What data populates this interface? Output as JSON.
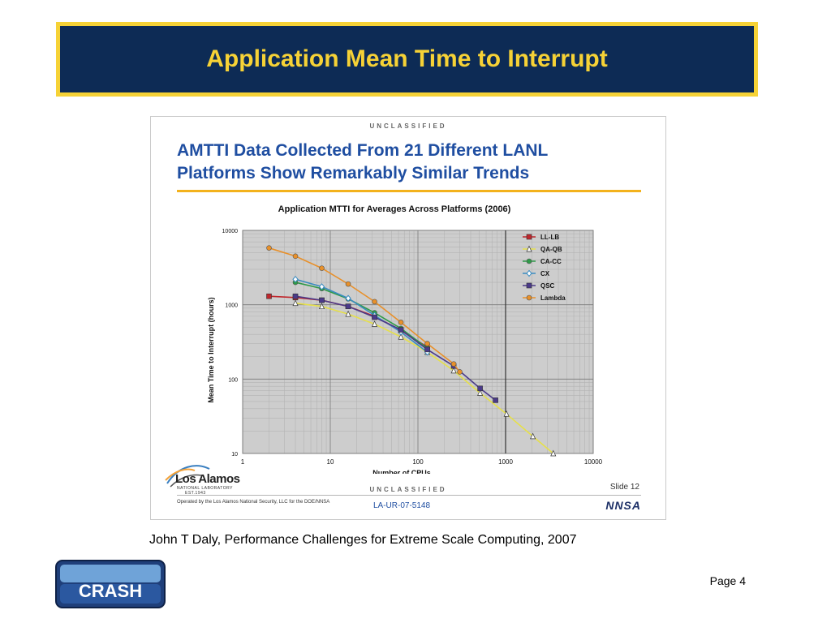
{
  "slide": {
    "title": "Application Mean Time to Interrupt",
    "caption": "John T Daly, Performance Challenges for Extreme Scale Computing, 2007",
    "page_label": "Page 4",
    "logo_text": "CRASH"
  },
  "inner": {
    "classification_top": "UNCLASSIFIED",
    "classification_bottom": "UNCLASSIFIED",
    "headline_line1": "AMTTI Data Collected From 21 Different LANL",
    "headline_line2": "Platforms Show Remarkably Similar Trends",
    "slide_number": "Slide 12",
    "document_id": "LA-UR-07-5148",
    "operated_by": "Operated by the Los Alamos National Security, LLC for the DOE/NNSA",
    "lab_name": "Los Alamos",
    "lab_sub": "NATIONAL LABORATORY",
    "lab_est": "EST.1943",
    "agency_logo": "NNSA"
  },
  "colors": {
    "title_bg": "#0d2b55",
    "title_fg": "#f6d236",
    "headline": "#1f4ea1",
    "headline_rule": "#f3b21d",
    "plot_bg": "#cdcdcd"
  },
  "chart_data": {
    "type": "line",
    "title": "Application MTTI for Averages Across Platforms (2006)",
    "xlabel": "Number of CPUs",
    "ylabel": "Mean Time to Interrupt (hours)",
    "xscale": "log",
    "yscale": "log",
    "xlim": [
      1,
      10000
    ],
    "ylim": [
      10,
      10000
    ],
    "x_ticks": [
      "1",
      "10",
      "100",
      "1000",
      "10000"
    ],
    "y_ticks": [
      "10",
      "100",
      "1000",
      "10000"
    ],
    "grid": true,
    "legend_position": "top-right",
    "series": [
      {
        "name": "LL-LB",
        "color": "#c0272d",
        "marker": "square",
        "x": [
          2,
          4,
          8,
          16,
          32,
          64,
          128
        ],
        "y": [
          1300,
          1250,
          1150,
          950,
          700,
          450,
          270
        ]
      },
      {
        "name": "QA-QB",
        "color": "#e6e04a",
        "marker": "triangle",
        "x": [
          4,
          8,
          16,
          32,
          64,
          128,
          256,
          512,
          1024,
          2048,
          3500
        ],
        "y": [
          1050,
          950,
          750,
          550,
          370,
          230,
          130,
          65,
          34,
          17,
          10
        ]
      },
      {
        "name": "CA-CC",
        "color": "#2f9a48",
        "marker": "circle",
        "x": [
          4,
          8,
          16,
          32,
          64,
          128
        ],
        "y": [
          2000,
          1650,
          1200,
          780,
          480,
          260
        ]
      },
      {
        "name": "CX",
        "color": "#3a8bc0",
        "marker": "diamond",
        "x": [
          4,
          8,
          16,
          32,
          64,
          128
        ],
        "y": [
          2200,
          1750,
          1220,
          720,
          430,
          230
        ]
      },
      {
        "name": "QSC",
        "color": "#4b3a8a",
        "marker": "square",
        "x": [
          4,
          8,
          16,
          32,
          64,
          128,
          256,
          512,
          768
        ],
        "y": [
          1300,
          1150,
          950,
          680,
          460,
          250,
          150,
          75,
          52
        ]
      },
      {
        "name": "Lambda",
        "color": "#e8902a",
        "marker": "circle",
        "x": [
          2,
          4,
          8,
          16,
          32,
          64,
          128,
          256,
          300
        ],
        "y": [
          5800,
          4500,
          3100,
          1900,
          1100,
          580,
          300,
          160,
          125
        ]
      }
    ]
  }
}
